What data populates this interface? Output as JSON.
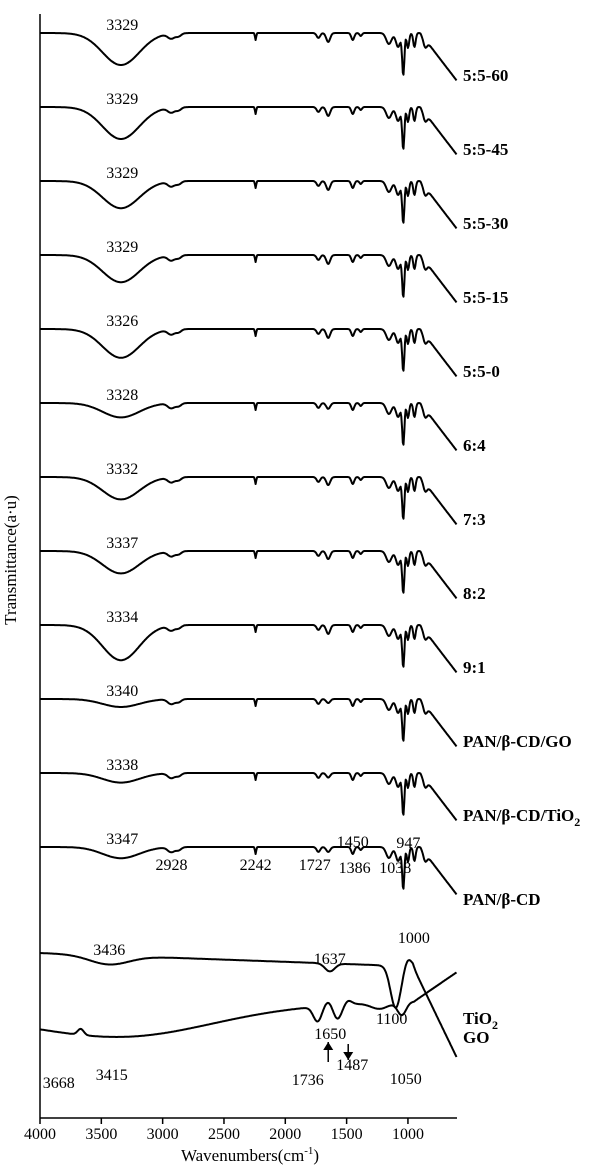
{
  "chart_data": {
    "type": "line",
    "xlabel": "Wavenumbers(cm-1)",
    "xlabel_main": "Wavenumbers(cm",
    "xlabel_sup": "-1",
    "xlabel_close": ")",
    "ylabel": "Transmittance(a·u)",
    "xlim": [
      4000,
      600
    ],
    "x_reversed": true,
    "x_ticks": [
      4000,
      3500,
      3000,
      2500,
      2000,
      1500,
      1000
    ],
    "grid": false,
    "y_ticks": [],
    "series": [
      {
        "name": "5:5-60",
        "shape": "blend",
        "oh_depth": 1.0,
        "offset": 0,
        "peak_labels": [
          {
            "text": "3329",
            "x": 3329
          }
        ]
      },
      {
        "name": "5:5-45",
        "shape": "blend",
        "oh_depth": 1.0,
        "offset": 1,
        "peak_labels": [
          {
            "text": "3329",
            "x": 3329
          }
        ]
      },
      {
        "name": "5:5-30",
        "shape": "blend",
        "oh_depth": 0.85,
        "offset": 2,
        "peak_labels": [
          {
            "text": "3329",
            "x": 3329
          }
        ]
      },
      {
        "name": "5:5-15",
        "shape": "blend",
        "oh_depth": 0.85,
        "offset": 3,
        "peak_labels": [
          {
            "text": "3329",
            "x": 3329
          }
        ]
      },
      {
        "name": "5:5-0",
        "shape": "blend",
        "oh_depth": 0.9,
        "offset": 4,
        "peak_labels": [
          {
            "text": "3326",
            "x": 3326
          }
        ]
      },
      {
        "name": "6:4",
        "shape": "blend",
        "oh_depth": 0.45,
        "offset": 5,
        "peak_labels": [
          {
            "text": "3328",
            "x": 3328
          }
        ]
      },
      {
        "name": "7:3",
        "shape": "blend",
        "oh_depth": 0.7,
        "offset": 6,
        "peak_labels": [
          {
            "text": "3332",
            "x": 3332
          }
        ]
      },
      {
        "name": "8:2",
        "shape": "blend",
        "oh_depth": 0.7,
        "offset": 7,
        "peak_labels": [
          {
            "text": "3337",
            "x": 3337
          }
        ]
      },
      {
        "name": "9:1",
        "shape": "blend",
        "oh_depth": 1.1,
        "offset": 8,
        "peak_labels": [
          {
            "text": "3334",
            "x": 3334
          }
        ]
      },
      {
        "name": "PAN/β-CD/GO",
        "shape": "blend",
        "oh_depth": 0.25,
        "offset": 9,
        "peak_labels": [
          {
            "text": "3340",
            "x": 3340
          }
        ]
      },
      {
        "name": "PAN/β-CD/TiO",
        "name_sub": "2",
        "shape": "blend",
        "oh_depth": 0.3,
        "offset": 10,
        "peak_labels": [
          {
            "text": "3338",
            "x": 3338
          }
        ]
      },
      {
        "name": "PAN/β-CD",
        "shape": "blend",
        "oh_depth": 0.35,
        "offset": 11,
        "peak_labels": [
          {
            "text": "3347",
            "x": 3347
          },
          {
            "text": "2928",
            "x": 2928
          },
          {
            "text": "2242",
            "x": 2242
          },
          {
            "text": "1727",
            "x": 1727
          },
          {
            "text": "1450",
            "x": 1450
          },
          {
            "text": "947",
            "x": 947
          },
          {
            "text": "1386",
            "x": 1386
          },
          {
            "text": "1038",
            "x": 1038
          }
        ]
      },
      {
        "name": "TiO",
        "name_sub": "2",
        "shape": "tio2",
        "offset": 12,
        "peak_labels": [
          {
            "text": "3436",
            "x": 3436
          },
          {
            "text": "1637",
            "x": 1637
          },
          {
            "text": "1100",
            "x": 1100
          },
          {
            "text": "1000",
            "x": 1000
          }
        ]
      },
      {
        "name": "GO",
        "shape": "go",
        "offset": 13,
        "peak_labels": [
          {
            "text": "3668",
            "x": 3668
          },
          {
            "text": "3415",
            "x": 3415
          },
          {
            "text": "1650",
            "x": 1650
          },
          {
            "text": "1736",
            "x": 1736
          },
          {
            "text": "1487",
            "x": 1487
          },
          {
            "text": "1050",
            "x": 1050
          }
        ]
      }
    ]
  }
}
